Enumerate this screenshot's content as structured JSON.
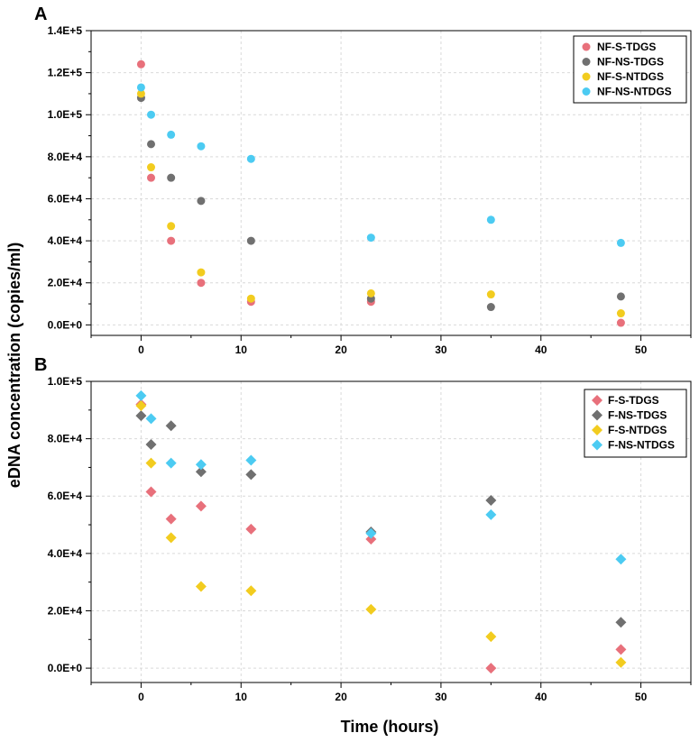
{
  "figure": {
    "ylabel": "eDNA concentration (copies/ml)",
    "xlabel": "Time (hours)"
  },
  "chart_data": [
    {
      "type": "scatter",
      "panel_label": "A",
      "marker": "circle",
      "xlim": [
        -5,
        55
      ],
      "ylim": [
        -5000,
        140000
      ],
      "x_ticks": [
        0,
        10,
        20,
        30,
        40,
        50
      ],
      "x_tick_labels": [
        "0",
        "10",
        "20",
        "30",
        "40",
        "50"
      ],
      "y_ticks": [
        0,
        20000,
        40000,
        60000,
        80000,
        100000,
        120000,
        140000
      ],
      "y_tick_labels": [
        "0.0E+0",
        "2.0E+4",
        "4.0E+4",
        "6.0E+4",
        "8.0E+4",
        "1.0E+5",
        "1.2E+5",
        "1.4E+5"
      ],
      "grid": true,
      "legend_position": "top-right",
      "series": [
        {
          "name": "NF-S-TDGS",
          "color": "#e8707b",
          "points": [
            [
              0,
              124000
            ],
            [
              1,
              70000
            ],
            [
              3,
              40000
            ],
            [
              6,
              20000
            ],
            [
              11,
              11000
            ],
            [
              23,
              11000
            ],
            [
              48,
              1000
            ]
          ]
        },
        {
          "name": "NF-NS-TDGS",
          "color": "#707070",
          "points": [
            [
              0,
              108000
            ],
            [
              1,
              86000
            ],
            [
              3,
              70000
            ],
            [
              6,
              59000
            ],
            [
              11,
              40000
            ],
            [
              23,
              12500
            ],
            [
              35,
              8500
            ],
            [
              48,
              13500
            ]
          ]
        },
        {
          "name": "NF-S-NTDGS",
          "color": "#f2cc1f",
          "points": [
            [
              0,
              110000
            ],
            [
              1,
              75000
            ],
            [
              3,
              47000
            ],
            [
              6,
              25000
            ],
            [
              11,
              12500
            ],
            [
              23,
              15000
            ],
            [
              35,
              14500
            ],
            [
              48,
              5500
            ]
          ]
        },
        {
          "name": "NF-NS-NTDGS",
          "color": "#4ccbf2",
          "points": [
            [
              0,
              113000
            ],
            [
              1,
              100000
            ],
            [
              3,
              90500
            ],
            [
              6,
              85000
            ],
            [
              11,
              79000
            ],
            [
              23,
              41500
            ],
            [
              35,
              50000
            ],
            [
              48,
              39000
            ]
          ]
        }
      ]
    },
    {
      "type": "scatter",
      "panel_label": "B",
      "marker": "diamond",
      "xlim": [
        -5,
        55
      ],
      "ylim": [
        -5000,
        100000
      ],
      "x_ticks": [
        0,
        10,
        20,
        30,
        40,
        50
      ],
      "x_tick_labels": [
        "0",
        "10",
        "20",
        "30",
        "40",
        "50"
      ],
      "y_ticks": [
        0,
        20000,
        40000,
        60000,
        80000,
        100000
      ],
      "y_tick_labels": [
        "0.0E+0",
        "2.0E+4",
        "4.0E+4",
        "6.0E+4",
        "8.0E+4",
        "1.0E+5"
      ],
      "grid": true,
      "legend_position": "top-right",
      "series": [
        {
          "name": "F-S-TDGS",
          "color": "#e8707b",
          "points": [
            [
              0,
              92000
            ],
            [
              1,
              61500
            ],
            [
              3,
              52000
            ],
            [
              6,
              56500
            ],
            [
              11,
              48500
            ],
            [
              23,
              45000
            ],
            [
              35,
              0
            ],
            [
              48,
              6500
            ]
          ]
        },
        {
          "name": "F-NS-TDGS",
          "color": "#707070",
          "points": [
            [
              0,
              88000
            ],
            [
              1,
              78000
            ],
            [
              3,
              84500
            ],
            [
              6,
              68500
            ],
            [
              11,
              67500
            ],
            [
              23,
              47500
            ],
            [
              35,
              58500
            ],
            [
              48,
              16000
            ]
          ]
        },
        {
          "name": "F-S-NTDGS",
          "color": "#f2cc1f",
          "points": [
            [
              0,
              91500
            ],
            [
              1,
              71500
            ],
            [
              3,
              45500
            ],
            [
              6,
              28500
            ],
            [
              11,
              27000
            ],
            [
              23,
              20500
            ],
            [
              35,
              11000
            ],
            [
              48,
              2000
            ]
          ]
        },
        {
          "name": "F-NS-NTDGS",
          "color": "#4ccbf2",
          "points": [
            [
              0,
              95000
            ],
            [
              1,
              87000
            ],
            [
              3,
              71500
            ],
            [
              6,
              71000
            ],
            [
              11,
              72500
            ],
            [
              23,
              47000
            ],
            [
              35,
              53500
            ],
            [
              48,
              38000
            ]
          ]
        }
      ]
    }
  ]
}
